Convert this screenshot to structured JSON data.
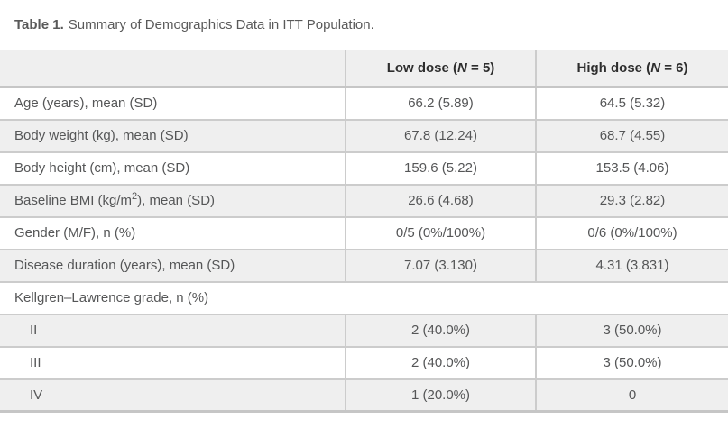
{
  "caption": {
    "label": "Table 1.",
    "text": "Summary of Demographics Data in ITT Population."
  },
  "header": {
    "low": {
      "pre": "Low dose (",
      "n": "N",
      "post": " = 5)"
    },
    "high": {
      "pre": "High dose (",
      "n": "N",
      "post": " = 6)"
    }
  },
  "rows": [
    {
      "label": "Age (years), mean (SD)",
      "low": "66.2 (5.89)",
      "high": "64.5 (5.32)"
    },
    {
      "label": "Body weight (kg), mean (SD)",
      "low": "67.8 (12.24)",
      "high": "68.7 (4.55)"
    },
    {
      "label": "Body height (cm), mean (SD)",
      "low": "159.6 (5.22)",
      "high": "153.5 (4.06)"
    },
    {
      "label_pre": "Baseline BMI (kg/m",
      "label_sup": "2",
      "label_post": "), mean (SD)",
      "low": "26.6 (4.68)",
      "high": "29.3 (2.82)"
    },
    {
      "label": "Gender (M/F), n (%)",
      "low": "0/5 (0%/100%)",
      "high": "0/6 (0%/100%)"
    },
    {
      "label": "Disease duration (years), mean (SD)",
      "low": "7.07 (3.130)",
      "high": "4.31 (3.831)"
    },
    {
      "label": "Kellgren–Lawrence grade, n (%)"
    },
    {
      "label": "II",
      "low": "2 (40.0%)",
      "high": "3 (50.0%)"
    },
    {
      "label": "III",
      "low": "2 (40.0%)",
      "high": "3 (50.0%)"
    },
    {
      "label": "IV",
      "low": "1 (20.0%)",
      "high": "0"
    }
  ],
  "colors": {
    "header_bg": "#efefef",
    "alt_row_bg": "#efefef",
    "cell_border": "#cccccc",
    "strong_border": "#c6c6c6",
    "body_text": "#555657",
    "header_text": "#2e2e2e",
    "caption_text": "#595959"
  }
}
